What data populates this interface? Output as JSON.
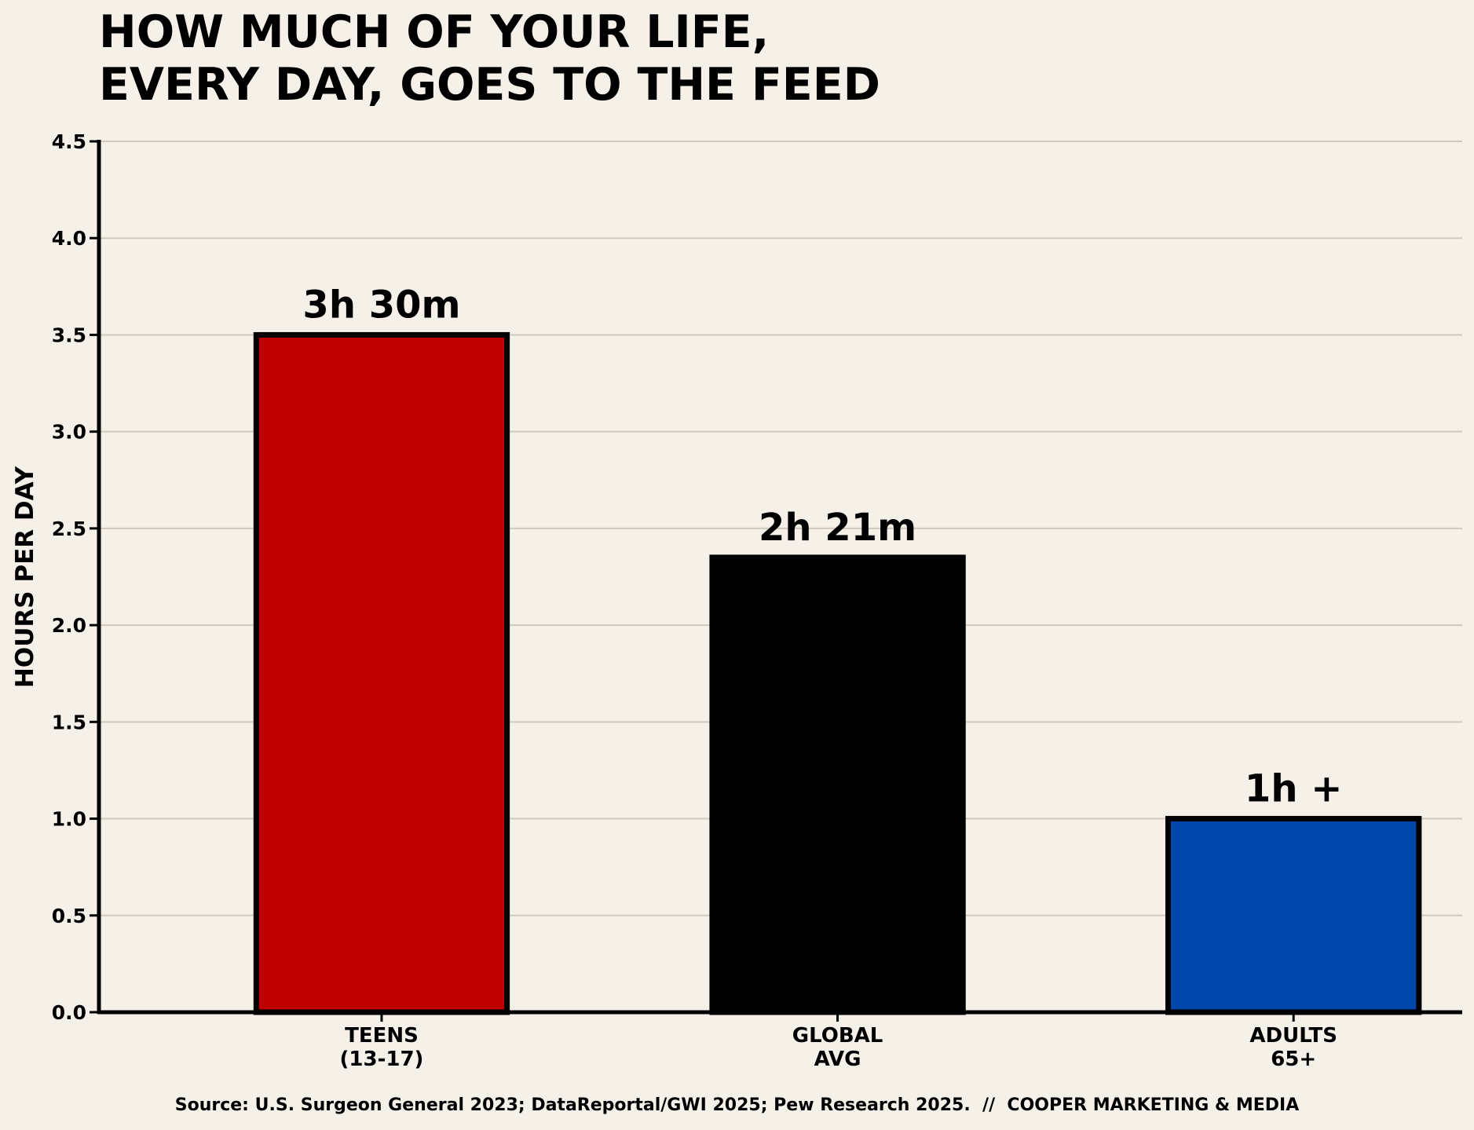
{
  "chart_data": {
    "type": "bar",
    "title_lines": [
      "HOW MUCH OF YOUR LIFE,",
      "EVERY DAY, GOES TO THE FEED"
    ],
    "ylabel": "HOURS PER DAY",
    "xlabel": "",
    "ylim": [
      0,
      4.5
    ],
    "yticks": [
      0.0,
      0.5,
      1.0,
      1.5,
      2.0,
      2.5,
      3.0,
      3.5,
      4.0,
      4.5
    ],
    "ytick_labels": [
      "0.0",
      "0.5",
      "1.0",
      "1.5",
      "2.0",
      "2.5",
      "3.0",
      "3.5",
      "4.0",
      "4.5"
    ],
    "grid": "horizontal",
    "categories": [
      [
        "TEENS",
        "(13-17)"
      ],
      [
        "GLOBAL",
        "AVG"
      ],
      [
        "ADULTS",
        "65+"
      ]
    ],
    "values": [
      3.5,
      2.35,
      1.0
    ],
    "data_labels": [
      "3h 30m",
      "2h 21m",
      "1h +"
    ],
    "colors": [
      "#bf0000",
      "#000000",
      "#0047ab"
    ],
    "edge_color": "#000000",
    "grid_color": "#cfcabd",
    "background": "#f5f0e8"
  },
  "source": "Source: U.S. Surgeon General 2023; DataReportal/GWI 2025; Pew Research 2025.  //  COOPER MARKETING & MEDIA"
}
